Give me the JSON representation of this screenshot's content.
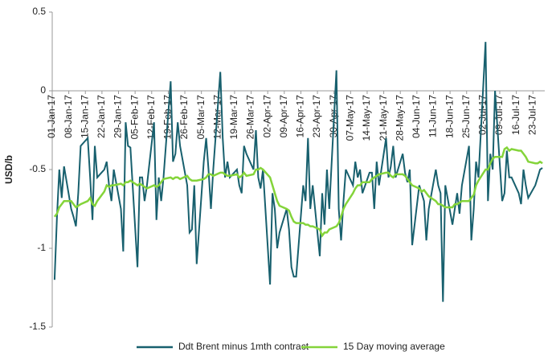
{
  "chart_data": {
    "type": "line",
    "y_label": "USD/b",
    "ylim": [
      -1.5,
      0.5
    ],
    "yticks": [
      0.5,
      0,
      -0.5,
      -1,
      -1.5
    ],
    "xlim": [
      "2017-01-01",
      "2017-07-28"
    ],
    "xticks": [
      {
        "value": "2017-01-01",
        "label": "01-Jan-17"
      },
      {
        "value": "2017-01-08",
        "label": "08-Jan-17"
      },
      {
        "value": "2017-01-15",
        "label": "15-Jan-17"
      },
      {
        "value": "2017-01-22",
        "label": "22-Jan-17"
      },
      {
        "value": "2017-01-29",
        "label": "29-Jan-17"
      },
      {
        "value": "2017-02-05",
        "label": "05-Feb-17"
      },
      {
        "value": "2017-02-12",
        "label": "12-Feb-17"
      },
      {
        "value": "2017-02-19",
        "label": "19-Feb-17"
      },
      {
        "value": "2017-02-26",
        "label": "26-Feb-17"
      },
      {
        "value": "2017-03-05",
        "label": "05-Mar-17"
      },
      {
        "value": "2017-03-12",
        "label": "12-Mar-17"
      },
      {
        "value": "2017-03-19",
        "label": "19-Mar-17"
      },
      {
        "value": "2017-03-26",
        "label": "26-Mar-17"
      },
      {
        "value": "2017-04-02",
        "label": "02-Apr-17"
      },
      {
        "value": "2017-04-09",
        "label": "09-Apr-17"
      },
      {
        "value": "2017-04-16",
        "label": "16-Apr-17"
      },
      {
        "value": "2017-04-23",
        "label": "23-Apr-17"
      },
      {
        "value": "2017-04-30",
        "label": "30-Apr-17"
      },
      {
        "value": "2017-05-07",
        "label": "07-May-17"
      },
      {
        "value": "2017-05-14",
        "label": "14-May-17"
      },
      {
        "value": "2017-05-21",
        "label": "21-May-17"
      },
      {
        "value": "2017-05-28",
        "label": "28-May-17"
      },
      {
        "value": "2017-06-04",
        "label": "04-Jun-17"
      },
      {
        "value": "2017-06-11",
        "label": "11-Jun-17"
      },
      {
        "value": "2017-06-18",
        "label": "18-Jun-17"
      },
      {
        "value": "2017-06-25",
        "label": "25-Jun-17"
      },
      {
        "value": "2017-07-02",
        "label": "02-Jul-17"
      },
      {
        "value": "2017-07-09",
        "label": "09-Jul-17"
      },
      {
        "value": "2017-07-16",
        "label": "16-Jul-17"
      },
      {
        "value": "2017-07-23",
        "label": "23-Jul-17"
      }
    ],
    "x": [
      "2017-01-02",
      "2017-01-03",
      "2017-01-04",
      "2017-01-05",
      "2017-01-06",
      "2017-01-09",
      "2017-01-10",
      "2017-01-11",
      "2017-01-12",
      "2017-01-13",
      "2017-01-16",
      "2017-01-17",
      "2017-01-18",
      "2017-01-19",
      "2017-01-20",
      "2017-01-23",
      "2017-01-24",
      "2017-01-25",
      "2017-01-26",
      "2017-01-27",
      "2017-01-30",
      "2017-01-31",
      "2017-02-01",
      "2017-02-02",
      "2017-02-03",
      "2017-02-06",
      "2017-02-07",
      "2017-02-08",
      "2017-02-09",
      "2017-02-10",
      "2017-02-13",
      "2017-02-14",
      "2017-02-15",
      "2017-02-16",
      "2017-02-17",
      "2017-02-20",
      "2017-02-21",
      "2017-02-22",
      "2017-02-23",
      "2017-02-24",
      "2017-02-27",
      "2017-02-28",
      "2017-03-01",
      "2017-03-02",
      "2017-03-03",
      "2017-03-06",
      "2017-03-07",
      "2017-03-08",
      "2017-03-09",
      "2017-03-10",
      "2017-03-13",
      "2017-03-14",
      "2017-03-15",
      "2017-03-16",
      "2017-03-17",
      "2017-03-20",
      "2017-03-21",
      "2017-03-22",
      "2017-03-23",
      "2017-03-24",
      "2017-03-27",
      "2017-03-28",
      "2017-03-29",
      "2017-03-30",
      "2017-03-31",
      "2017-04-03",
      "2017-04-04",
      "2017-04-05",
      "2017-04-06",
      "2017-04-07",
      "2017-04-10",
      "2017-04-11",
      "2017-04-12",
      "2017-04-13",
      "2017-04-14",
      "2017-04-17",
      "2017-04-18",
      "2017-04-19",
      "2017-04-20",
      "2017-04-21",
      "2017-04-24",
      "2017-04-25",
      "2017-04-26",
      "2017-04-27",
      "2017-04-28",
      "2017-05-01",
      "2017-05-02",
      "2017-05-03",
      "2017-05-04",
      "2017-05-05",
      "2017-05-08",
      "2017-05-09",
      "2017-05-10",
      "2017-05-11",
      "2017-05-12",
      "2017-05-15",
      "2017-05-16",
      "2017-05-17",
      "2017-05-18",
      "2017-05-19",
      "2017-05-22",
      "2017-05-23",
      "2017-05-24",
      "2017-05-25",
      "2017-05-26",
      "2017-05-29",
      "2017-05-30",
      "2017-05-31",
      "2017-06-01",
      "2017-06-02",
      "2017-06-05",
      "2017-06-06",
      "2017-06-07",
      "2017-06-08",
      "2017-06-09",
      "2017-06-12",
      "2017-06-13",
      "2017-06-14",
      "2017-06-15",
      "2017-06-16",
      "2017-06-19",
      "2017-06-20",
      "2017-06-21",
      "2017-06-22",
      "2017-06-23",
      "2017-06-26",
      "2017-06-27",
      "2017-06-28",
      "2017-06-29",
      "2017-06-30",
      "2017-07-03",
      "2017-07-04",
      "2017-07-05",
      "2017-07-06",
      "2017-07-07",
      "2017-07-10",
      "2017-07-11",
      "2017-07-12",
      "2017-07-13",
      "2017-07-14",
      "2017-07-17",
      "2017-07-18",
      "2017-07-19",
      "2017-07-20",
      "2017-07-21",
      "2017-07-24",
      "2017-07-25",
      "2017-07-26",
      "2017-07-27"
    ],
    "series": [
      {
        "name": "Ddt Brent minus 1mth contract",
        "color": "#18606e",
        "values": [
          -1.2,
          -0.8,
          -0.5,
          -0.68,
          -0.48,
          -0.75,
          -0.8,
          -0.86,
          -0.65,
          -0.35,
          -0.3,
          -0.55,
          -0.82,
          -0.35,
          -0.55,
          -0.5,
          -0.45,
          -0.6,
          -0.7,
          -0.5,
          -0.75,
          -1.02,
          -0.2,
          -0.35,
          -0.36,
          -1.12,
          -0.55,
          -0.55,
          -0.7,
          -0.6,
          -0.2,
          -0.82,
          -0.55,
          -0.7,
          -0.55,
          0.06,
          -0.45,
          -0.4,
          -0.2,
          -0.35,
          -0.6,
          -0.9,
          -0.88,
          -0.6,
          -1.1,
          -0.45,
          -0.3,
          -0.5,
          -0.75,
          -0.5,
          0.12,
          -0.3,
          -0.55,
          -0.45,
          -0.55,
          -0.5,
          -0.6,
          -0.65,
          -0.35,
          -0.4,
          -0.5,
          -0.25,
          -0.55,
          -0.62,
          -0.5,
          -1.23,
          -0.65,
          -0.75,
          -1.0,
          -0.9,
          -0.75,
          -0.88,
          -1.12,
          -1.18,
          -1.18,
          -0.6,
          -0.7,
          -0.3,
          -0.75,
          -0.6,
          -1.05,
          -0.65,
          -0.85,
          -0.5,
          -0.75,
          0.13,
          -0.75,
          -0.95,
          -0.7,
          -0.5,
          -0.6,
          -0.45,
          -0.55,
          -0.5,
          -0.65,
          -0.52,
          -0.52,
          -0.75,
          -0.45,
          -0.6,
          -0.3,
          -0.55,
          -0.48,
          -0.35,
          -0.55,
          -0.4,
          -0.52,
          -0.58,
          -0.5,
          -0.98,
          -0.6,
          -0.65,
          -0.7,
          -0.95,
          -0.75,
          -0.5,
          -0.6,
          -0.65,
          -1.34,
          -0.6,
          -0.85,
          -0.75,
          -0.65,
          -0.78,
          -0.6,
          -0.35,
          -0.95,
          -0.75,
          -0.45,
          -0.55,
          0.31,
          -0.7,
          -0.4,
          -0.5,
          0.0,
          -0.7,
          -0.65,
          -0.38,
          -0.55,
          -0.55,
          -0.65,
          -0.72,
          -0.5,
          -0.6,
          -0.68,
          -0.6,
          -0.55,
          -0.5,
          -0.49
        ]
      },
      {
        "name": "15 Day moving average",
        "color": "#84d43a",
        "values": [
          -0.8,
          -0.78,
          -0.74,
          -0.72,
          -0.7,
          -0.7,
          -0.72,
          -0.74,
          -0.73,
          -0.72,
          -0.7,
          -0.68,
          -0.72,
          -0.73,
          -0.7,
          -0.64,
          -0.6,
          -0.61,
          -0.6,
          -0.6,
          -0.59,
          -0.6,
          -0.58,
          -0.58,
          -0.57,
          -0.6,
          -0.59,
          -0.6,
          -0.61,
          -0.62,
          -0.6,
          -0.61,
          -0.6,
          -0.58,
          -0.56,
          -0.55,
          -0.56,
          -0.55,
          -0.55,
          -0.56,
          -0.54,
          -0.56,
          -0.57,
          -0.57,
          -0.57,
          -0.56,
          -0.55,
          -0.53,
          -0.53,
          -0.54,
          -0.52,
          -0.52,
          -0.53,
          -0.54,
          -0.54,
          -0.53,
          -0.55,
          -0.54,
          -0.52,
          -0.54,
          -0.53,
          -0.5,
          -0.5,
          -0.49,
          -0.5,
          -0.55,
          -0.6,
          -0.65,
          -0.7,
          -0.73,
          -0.75,
          -0.76,
          -0.8,
          -0.83,
          -0.84,
          -0.84,
          -0.85,
          -0.85,
          -0.86,
          -0.86,
          -0.88,
          -0.92,
          -0.9,
          -0.9,
          -0.88,
          -0.86,
          -0.84,
          -0.8,
          -0.75,
          -0.72,
          -0.65,
          -0.62,
          -0.6,
          -0.6,
          -0.58,
          -0.58,
          -0.56,
          -0.55,
          -0.54,
          -0.53,
          -0.52,
          -0.52,
          -0.54,
          -0.55,
          -0.53,
          -0.53,
          -0.54,
          -0.56,
          -0.58,
          -0.6,
          -0.62,
          -0.64,
          -0.63,
          -0.65,
          -0.67,
          -0.7,
          -0.72,
          -0.72,
          -0.73,
          -0.74,
          -0.74,
          -0.72,
          -0.72,
          -0.71,
          -0.7,
          -0.7,
          -0.68,
          -0.66,
          -0.6,
          -0.57,
          -0.5,
          -0.5,
          -0.46,
          -0.43,
          -0.42,
          -0.42,
          -0.37,
          -0.36,
          -0.38,
          -0.37,
          -0.38,
          -0.38,
          -0.4,
          -0.42,
          -0.45,
          -0.46,
          -0.46,
          -0.45,
          -0.46
        ]
      }
    ]
  }
}
